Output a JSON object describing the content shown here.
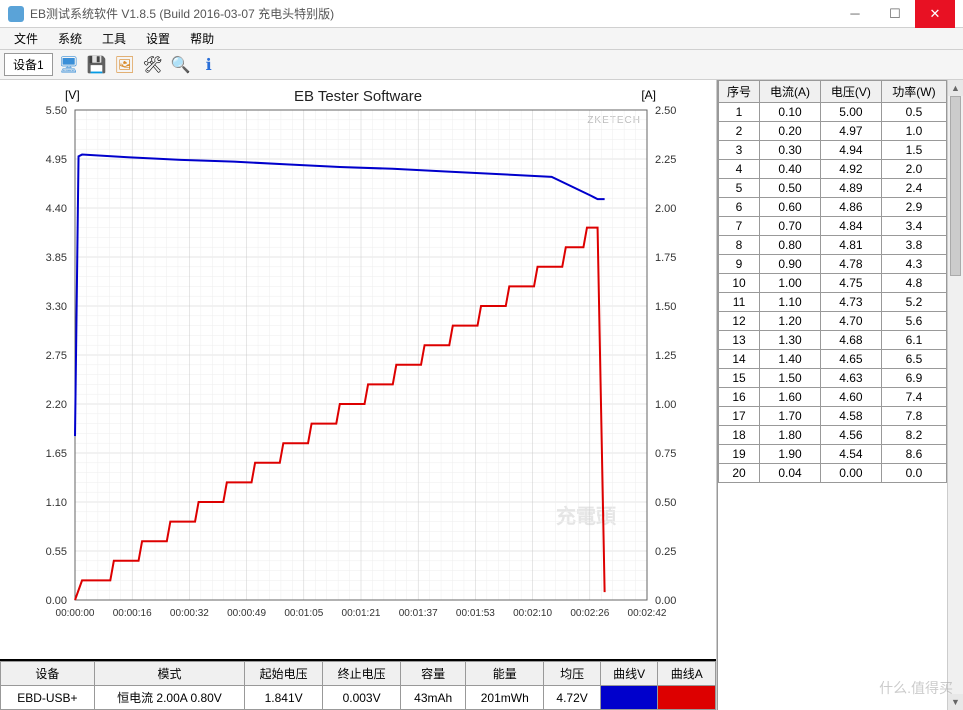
{
  "window": {
    "title": "EB测试系统软件 V1.8.5 (Build 2016-03-07 充电头特别版)"
  },
  "menu": {
    "items": [
      "文件",
      "系统",
      "工具",
      "设置",
      "帮助"
    ]
  },
  "toolbar": {
    "tab": "设备1"
  },
  "chart": {
    "title": "EB Tester Software",
    "y_left_label": "[V]",
    "y_right_label": "[A]",
    "watermark1": "ZKETECH",
    "watermark2": "充電頭",
    "y_left_ticks": [
      "0.00",
      "0.55",
      "1.10",
      "1.65",
      "2.20",
      "2.75",
      "3.30",
      "3.85",
      "4.40",
      "4.95",
      "5.50"
    ],
    "y_right_ticks": [
      "0.00",
      "0.25",
      "0.50",
      "0.75",
      "1.00",
      "1.25",
      "1.50",
      "1.75",
      "2.00",
      "2.25",
      "2.50"
    ],
    "x_ticks": [
      "00:00:00",
      "00:00:16",
      "00:00:32",
      "00:00:49",
      "00:01:05",
      "00:01:21",
      "00:01:37",
      "00:01:53",
      "00:02:10",
      "00:02:26",
      "00:02:42"
    ],
    "colors": {
      "voltage": "#0000cc",
      "current": "#dd0000",
      "grid": "#cccccc",
      "bg": "#ffffff"
    },
    "voltage_series": [
      [
        0,
        1.84
      ],
      [
        1,
        4.98
      ],
      [
        2,
        5.0
      ],
      [
        15,
        4.97
      ],
      [
        30,
        4.94
      ],
      [
        45,
        4.92
      ],
      [
        60,
        4.89
      ],
      [
        75,
        4.86
      ],
      [
        90,
        4.84
      ],
      [
        105,
        4.81
      ],
      [
        120,
        4.78
      ],
      [
        135,
        4.75
      ],
      [
        146,
        4.54
      ],
      [
        147,
        4.52
      ],
      [
        148,
        4.5
      ],
      [
        150,
        4.5
      ]
    ],
    "current_series": [
      [
        0,
        0
      ],
      [
        2,
        0.1
      ],
      [
        10,
        0.1
      ],
      [
        11,
        0.2
      ],
      [
        18,
        0.2
      ],
      [
        19,
        0.3
      ],
      [
        26,
        0.3
      ],
      [
        27,
        0.4
      ],
      [
        34,
        0.4
      ],
      [
        35,
        0.5
      ],
      [
        42,
        0.5
      ],
      [
        43,
        0.6
      ],
      [
        50,
        0.6
      ],
      [
        51,
        0.7
      ],
      [
        58,
        0.7
      ],
      [
        59,
        0.8
      ],
      [
        66,
        0.8
      ],
      [
        67,
        0.9
      ],
      [
        74,
        0.9
      ],
      [
        75,
        1.0
      ],
      [
        82,
        1.0
      ],
      [
        83,
        1.1
      ],
      [
        90,
        1.1
      ],
      [
        91,
        1.2
      ],
      [
        98,
        1.2
      ],
      [
        99,
        1.3
      ],
      [
        106,
        1.3
      ],
      [
        107,
        1.4
      ],
      [
        114,
        1.4
      ],
      [
        115,
        1.5
      ],
      [
        122,
        1.5
      ],
      [
        123,
        1.6
      ],
      [
        130,
        1.6
      ],
      [
        131,
        1.7
      ],
      [
        138,
        1.7
      ],
      [
        139,
        1.8
      ],
      [
        144,
        1.8
      ],
      [
        145,
        1.9
      ],
      [
        148,
        1.9
      ],
      [
        150,
        0.04
      ]
    ]
  },
  "info": {
    "headers": [
      "设备",
      "模式",
      "起始电压",
      "终止电压",
      "容量",
      "能量",
      "均压",
      "曲线V",
      "曲线A"
    ],
    "row": {
      "device": "EBD-USB+",
      "mode": "恒电流 2.00A 0.80V",
      "start_v": "1.841V",
      "end_v": "0.003V",
      "capacity": "43mAh",
      "energy": "201mWh",
      "avg_v": "4.72V"
    }
  },
  "side": {
    "headers": [
      "序号",
      "电流(A)",
      "电压(V)",
      "功率(W)"
    ],
    "rows": [
      [
        "1",
        "0.10",
        "5.00",
        "0.5"
      ],
      [
        "2",
        "0.20",
        "4.97",
        "1.0"
      ],
      [
        "3",
        "0.30",
        "4.94",
        "1.5"
      ],
      [
        "4",
        "0.40",
        "4.92",
        "2.0"
      ],
      [
        "5",
        "0.50",
        "4.89",
        "2.4"
      ],
      [
        "6",
        "0.60",
        "4.86",
        "2.9"
      ],
      [
        "7",
        "0.70",
        "4.84",
        "3.4"
      ],
      [
        "8",
        "0.80",
        "4.81",
        "3.8"
      ],
      [
        "9",
        "0.90",
        "4.78",
        "4.3"
      ],
      [
        "10",
        "1.00",
        "4.75",
        "4.8"
      ],
      [
        "11",
        "1.10",
        "4.73",
        "5.2"
      ],
      [
        "12",
        "1.20",
        "4.70",
        "5.6"
      ],
      [
        "13",
        "1.30",
        "4.68",
        "6.1"
      ],
      [
        "14",
        "1.40",
        "4.65",
        "6.5"
      ],
      [
        "15",
        "1.50",
        "4.63",
        "6.9"
      ],
      [
        "16",
        "1.60",
        "4.60",
        "7.4"
      ],
      [
        "17",
        "1.70",
        "4.58",
        "7.8"
      ],
      [
        "18",
        "1.80",
        "4.56",
        "8.2"
      ],
      [
        "19",
        "1.90",
        "4.54",
        "8.6"
      ],
      [
        "20",
        "0.04",
        "0.00",
        "0.0"
      ]
    ]
  },
  "bottom_wm": "什么.值得买"
}
